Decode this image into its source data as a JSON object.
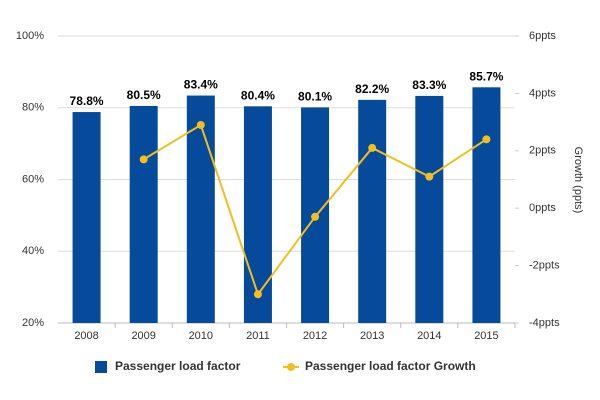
{
  "chart_data": {
    "type": "bar_line",
    "categories": [
      "2008",
      "2009",
      "2010",
      "2011",
      "2012",
      "2013",
      "2014",
      "2015"
    ],
    "series": [
      {
        "name": "Passenger load factor",
        "color": "#054a9b",
        "type": "bar",
        "values": [
          78.8,
          80.5,
          83.4,
          80.4,
          80.1,
          82.2,
          83.3,
          85.7
        ],
        "value_labels": [
          "78.8%",
          "80.5%",
          "83.4%",
          "80.4%",
          "80.1%",
          "82.2%",
          "83.3%",
          "85.7%"
        ]
      },
      {
        "name": "Passenger load factor Growth",
        "color": "#f2bf1c",
        "type": "line",
        "axis": "y2",
        "values": [
          null,
          1.7,
          2.9,
          -3.0,
          -0.3,
          2.1,
          1.1,
          2.4
        ]
      }
    ],
    "ylim": [
      20,
      100
    ],
    "yticks": [
      {
        "value": 20,
        "label": "20%"
      },
      {
        "value": 40,
        "label": "40%"
      },
      {
        "value": 60,
        "label": "60%"
      },
      {
        "value": 80,
        "label": "80%"
      },
      {
        "value": 100,
        "label": "100%"
      }
    ],
    "y2lim": [
      -4,
      6
    ],
    "y2ticks": [
      {
        "value": -4,
        "label": "-4ppts"
      },
      {
        "value": -2,
        "label": "-2ppts"
      },
      {
        "value": 0,
        "label": "0ppts"
      },
      {
        "value": 2,
        "label": "2ppts"
      },
      {
        "value": 4,
        "label": "4ppts"
      },
      {
        "value": 6,
        "label": "6ppts"
      }
    ],
    "y2_label": "Growth (ppts)",
    "grid": true,
    "legend": "bottom"
  }
}
